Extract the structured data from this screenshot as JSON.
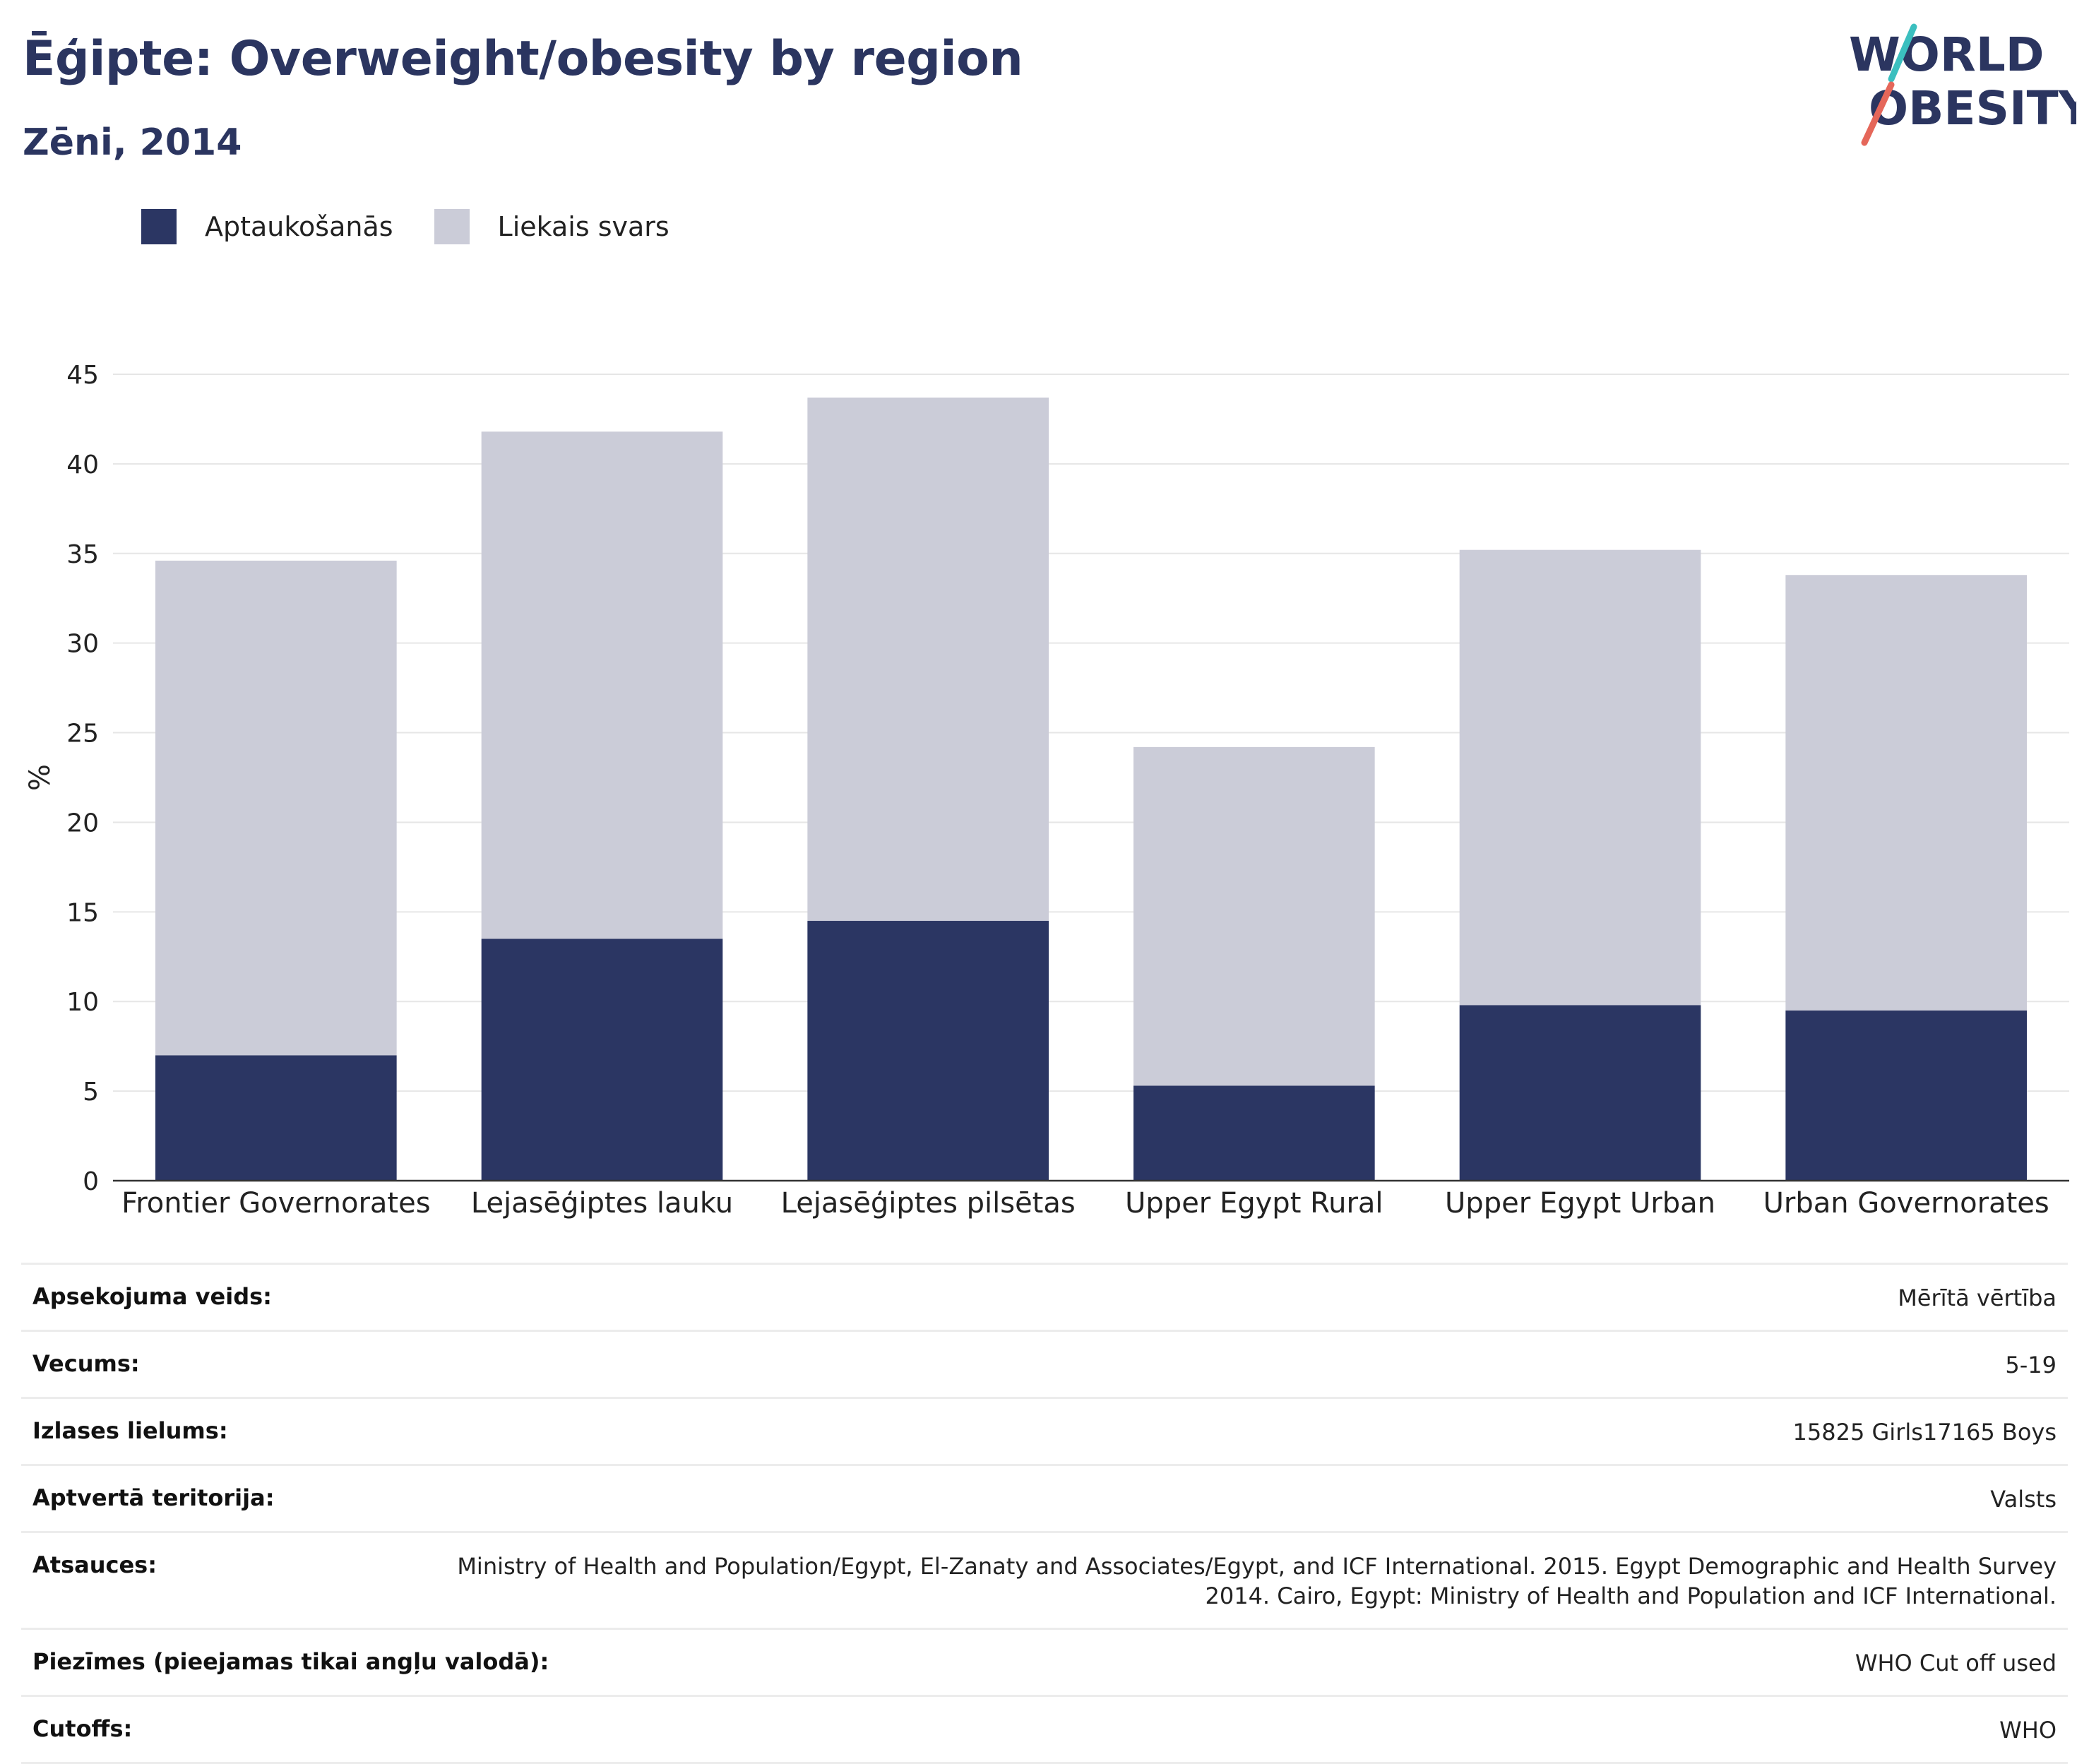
{
  "header": {
    "title": "Ēģipte: Overweight/obesity by region",
    "subtitle": "Zēni, 2014"
  },
  "logo": {
    "line1": "WORLD",
    "line2": "OBESITY"
  },
  "colors": {
    "obesity": "#2b3663",
    "overweight": "#cbccd8",
    "title": "#2b3560",
    "logo_teal": "#3bbfbf",
    "logo_red": "#e5675a"
  },
  "chart_data": {
    "type": "bar",
    "stacked": true,
    "categories": [
      "Frontier Governorates",
      "Lejasēģiptes lauku",
      "Lejasēģiptes pilsētas",
      "Upper Egypt Rural",
      "Upper Egypt Urban",
      "Urban Governorates"
    ],
    "series": [
      {
        "name": "Aptaukošanās",
        "values": [
          7.0,
          13.5,
          14.5,
          5.3,
          9.8,
          9.5
        ]
      },
      {
        "name": "Liekais svars",
        "values": [
          27.6,
          28.3,
          29.2,
          18.9,
          25.4,
          24.3
        ]
      }
    ],
    "ylabel": "%",
    "ylim": [
      0,
      45
    ],
    "yticks": [
      0,
      5,
      10,
      15,
      20,
      25,
      30,
      35,
      40,
      45
    ],
    "grid": true,
    "legend_position": "top-left"
  },
  "info": [
    {
      "key": "Apsekojuma veids:",
      "value": "Mērītā vērtība"
    },
    {
      "key": "Vecums:",
      "value": "5-19"
    },
    {
      "key": "Izlases lielums:",
      "value": "15825 Girls17165 Boys"
    },
    {
      "key": "Aptvertā teritorija:",
      "value": "Valsts"
    },
    {
      "key": "Atsauces:",
      "value": "Ministry of Health and Population/Egypt, El-Zanaty and Associates/Egypt, and ICF International. 2015. Egypt Demographic and Health Survey 2014. Cairo, Egypt: Ministry of Health and Population and ICF International."
    },
    {
      "key": "Piezīmes (pieejamas tikai angļu valodā):",
      "value": "WHO Cut off used"
    },
    {
      "key": "Cutoffs:",
      "value": "WHO"
    }
  ]
}
